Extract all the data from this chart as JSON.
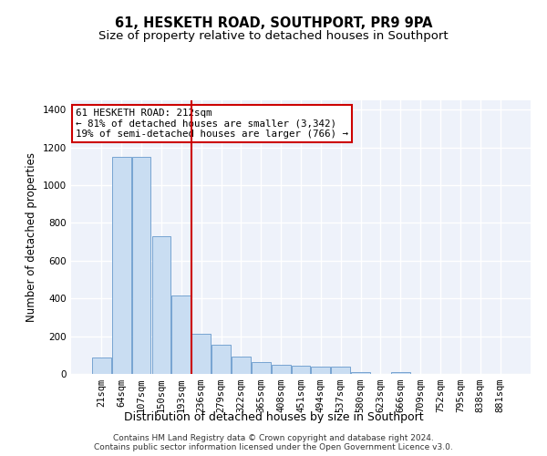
{
  "title": "61, HESKETH ROAD, SOUTHPORT, PR9 9PA",
  "subtitle": "Size of property relative to detached houses in Southport",
  "xlabel": "Distribution of detached houses by size in Southport",
  "ylabel": "Number of detached properties",
  "footer_line1": "Contains HM Land Registry data © Crown copyright and database right 2024.",
  "footer_line2": "Contains public sector information licensed under the Open Government Licence v3.0.",
  "categories": [
    "21sqm",
    "64sqm",
    "107sqm",
    "150sqm",
    "193sqm",
    "236sqm",
    "279sqm",
    "322sqm",
    "365sqm",
    "408sqm",
    "451sqm",
    "494sqm",
    "537sqm",
    "580sqm",
    "623sqm",
    "666sqm",
    "709sqm",
    "752sqm",
    "795sqm",
    "838sqm",
    "881sqm"
  ],
  "values": [
    88,
    1150,
    1150,
    730,
    415,
    215,
    155,
    90,
    65,
    48,
    43,
    40,
    38,
    12,
    0,
    12,
    0,
    0,
    0,
    0,
    0
  ],
  "bar_color": "#c9ddf2",
  "bar_edge_color": "#6699cc",
  "property_line_color": "#cc0000",
  "annotation_text_line1": "61 HESKETH ROAD: 212sqm",
  "annotation_text_line2": "← 81% of detached houses are smaller (3,342)",
  "annotation_text_line3": "19% of semi-detached houses are larger (766) →",
  "annotation_box_facecolor": "white",
  "annotation_box_edgecolor": "#cc0000",
  "ylim": [
    0,
    1450
  ],
  "yticks": [
    0,
    200,
    400,
    600,
    800,
    1000,
    1200,
    1400
  ],
  "bg_color": "#eef2fa",
  "grid_color": "#ffffff",
  "title_fontsize": 10.5,
  "subtitle_fontsize": 9.5,
  "ylabel_fontsize": 8.5,
  "xlabel_fontsize": 9,
  "tick_fontsize": 7.5,
  "annotation_fontsize": 7.8,
  "footer_fontsize": 6.5
}
